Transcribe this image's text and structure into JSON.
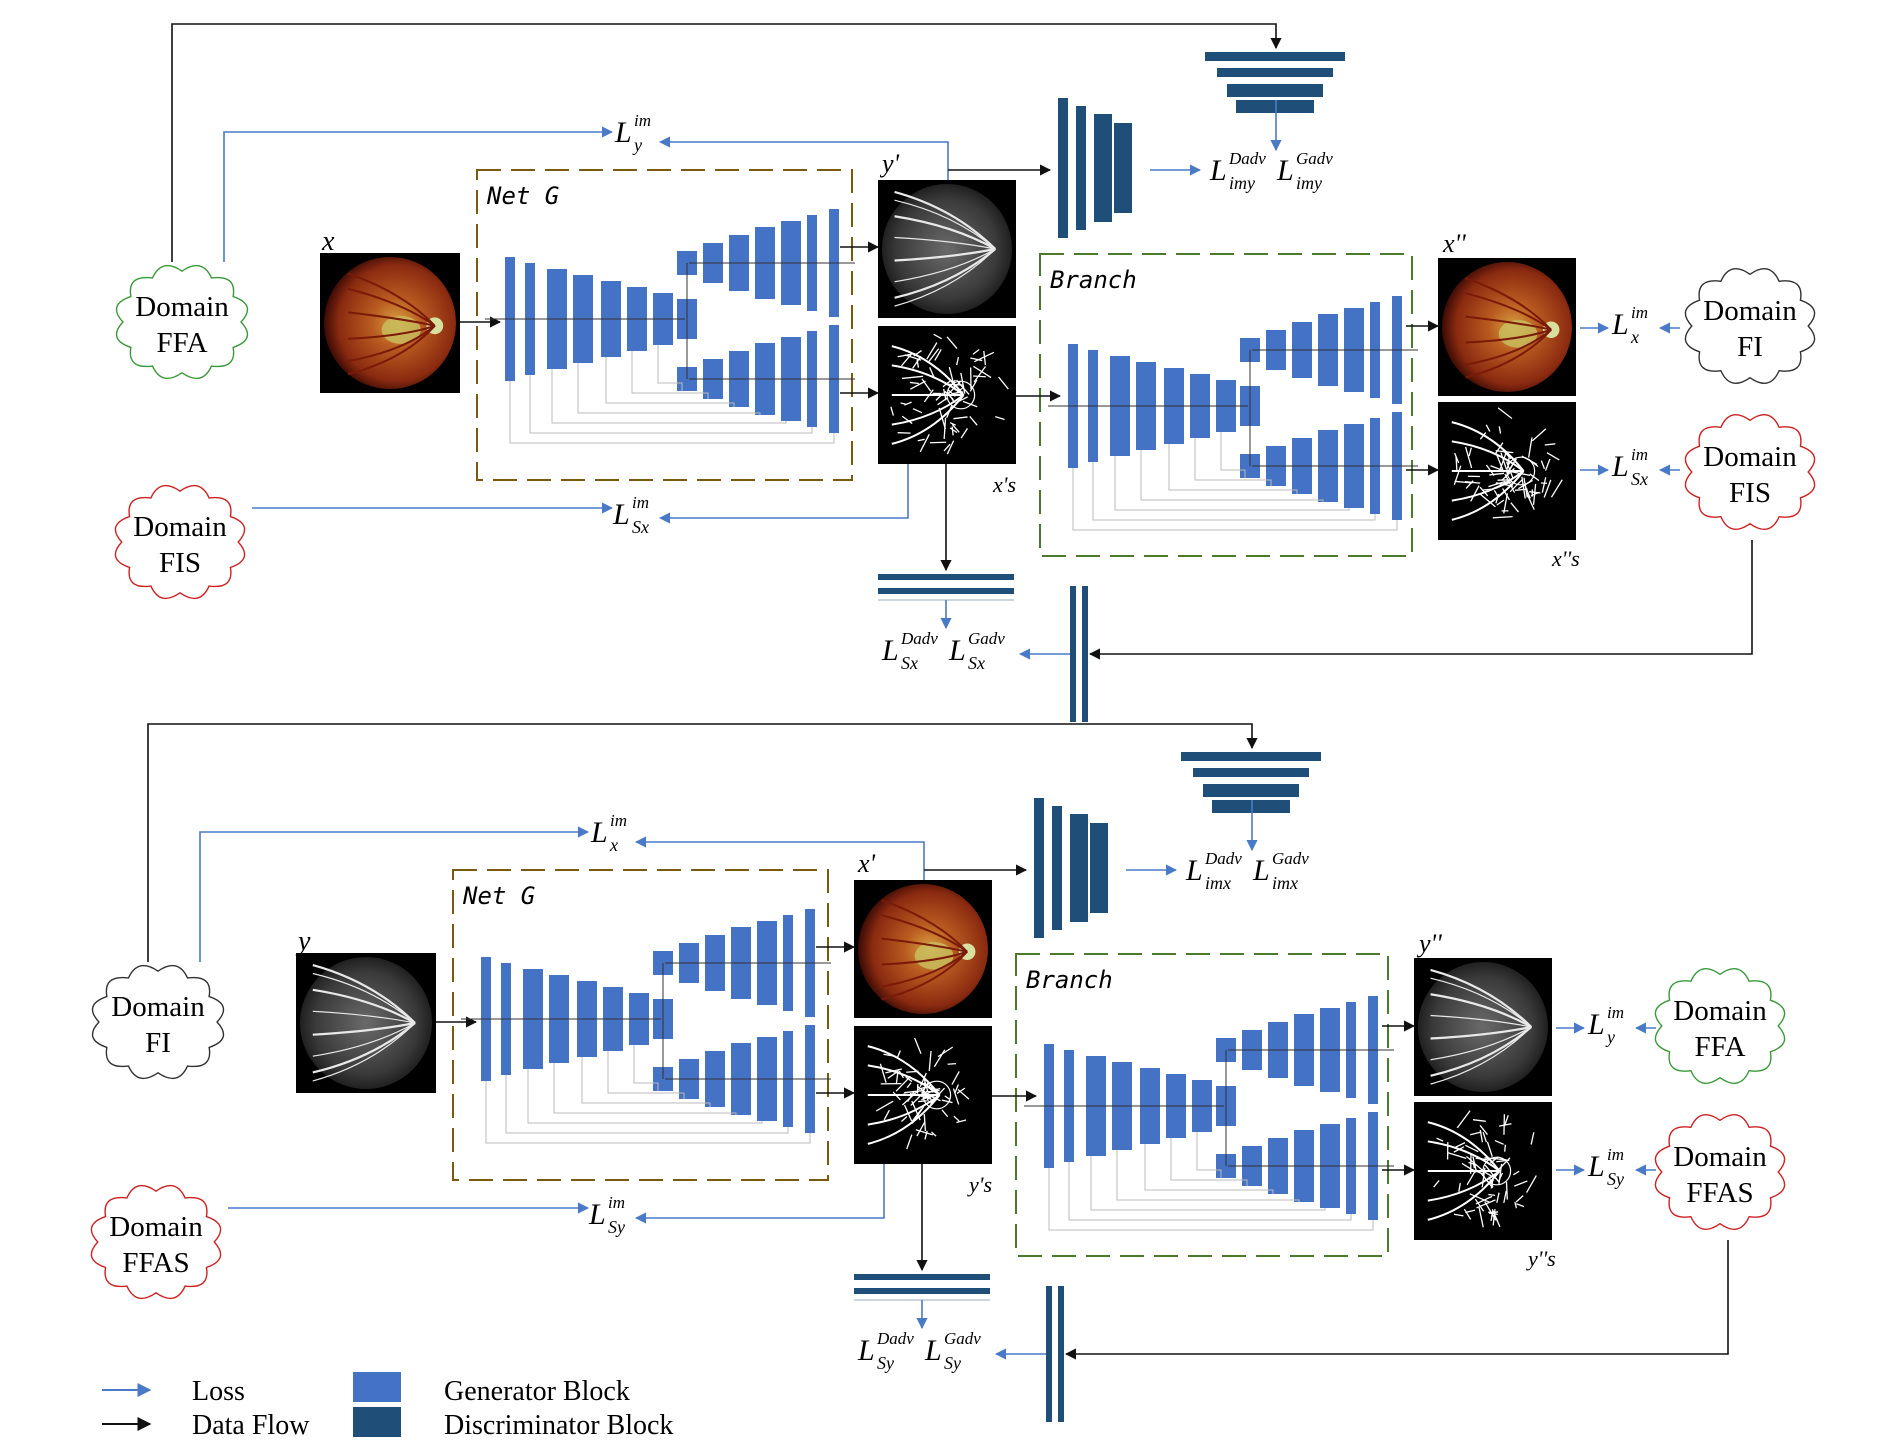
{
  "colors": {
    "loss": "#4a7ac6",
    "data_flow": "#111111",
    "generator_block": "#4472c4",
    "discriminator_block": "#1f4e79",
    "net_g_border": "#7a5a10",
    "branch_border": "#4a7a2a",
    "cloud_green": "#3a9a3a",
    "cloud_red": "#cc2222",
    "cloud_black": "#333333"
  },
  "domains": {
    "ffa": "Domain FFA",
    "fis": "Domain FIS",
    "fi": "Domain FI",
    "ffas": "Domain FFAS"
  },
  "boxes": {
    "net_g": "Net G",
    "branch": "Branch"
  },
  "top": {
    "input": "x",
    "gen_out": "y'",
    "seg_out": "x's",
    "rec_out": "x''",
    "rec_seg": "x''s",
    "loss_im": "L^im_y",
    "loss_seg": "L^im_Sx",
    "loss_rec": "L^im_x",
    "loss_rec_seg": "L^im_Sx",
    "adv_im": "L^Dadv_imy L^Gadv_imy",
    "adv_seg": "L^Dadv_Sx L^Gadv_Sx",
    "cloud_left_top": "Domain FFA",
    "cloud_left_bottom": "Domain FIS",
    "cloud_right_top": "Domain FI",
    "cloud_right_bottom": "Domain FIS"
  },
  "bottom": {
    "input": "y",
    "gen_out": "x'",
    "seg_out": "y's",
    "rec_out": "y''",
    "rec_seg": "y''s",
    "loss_im": "L^im_x",
    "loss_seg": "L^im_Sy",
    "loss_rec": "L^im_y",
    "loss_rec_seg": "L^im_Sy",
    "adv_im": "L^Dadv_imx L^Gadv_imx",
    "adv_seg": "L^Dadv_Sy L^Gadv_Sy",
    "cloud_left_top": "Domain FI",
    "cloud_left_bottom": "Domain FFAS",
    "cloud_right_top": "Domain FFA",
    "cloud_right_bottom": "Domain FFAS"
  },
  "legend": {
    "loss": "Loss",
    "data_flow": "Data Flow",
    "generator": "Generator Block",
    "discriminator": "Discriminator Block"
  },
  "image_kinds": {
    "fundus": "fundus-image",
    "ffa": "ffa-angiogram-image",
    "seg": "vessel-segmentation-image"
  }
}
